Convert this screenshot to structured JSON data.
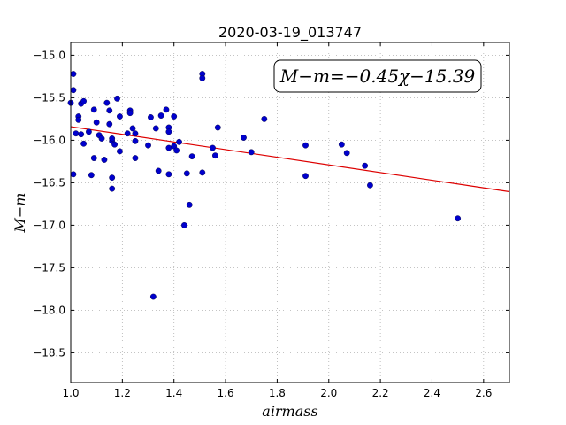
{
  "chart_data": {
    "type": "scatter",
    "title": "2020-03-19_013747",
    "xlabel": "airmass",
    "ylabel": "M−m",
    "xlim": [
      1.0,
      2.7
    ],
    "ylim": [
      -18.85,
      -14.85
    ],
    "y_inverted": true,
    "grid": true,
    "x_ticks": [
      1.0,
      1.2,
      1.4,
      1.6,
      1.8,
      2.0,
      2.2,
      2.4,
      2.6
    ],
    "x_tick_labels": [
      "1.0",
      "1.2",
      "1.4",
      "1.6",
      "1.8",
      "2.0",
      "2.2",
      "2.4",
      "2.6"
    ],
    "y_ticks": [
      -15.0,
      -15.5,
      -16.0,
      -16.5,
      -17.0,
      -17.5,
      -18.0,
      -18.5
    ],
    "y_tick_labels": [
      "−15.0",
      "−15.5",
      "−16.0",
      "−16.5",
      "−17.0",
      "−17.5",
      "−18.0",
      "−18.5"
    ],
    "annotation": "M−m=−0.45χ−15.39",
    "annotation_position": "top-right",
    "colors": {
      "points": "#0000cc",
      "fit_line": "#dd0000",
      "grid": "#b0b0b0"
    },
    "fit": {
      "slope": -0.45,
      "intercept": -15.39
    },
    "series": [
      {
        "points": [
          [
            1.0,
            -15.56
          ],
          [
            1.01,
            -15.22
          ],
          [
            1.01,
            -15.41
          ],
          [
            1.01,
            -16.4
          ],
          [
            1.02,
            -15.92
          ],
          [
            1.03,
            -15.72
          ],
          [
            1.03,
            -15.76
          ],
          [
            1.04,
            -15.57
          ],
          [
            1.04,
            -15.93
          ],
          [
            1.05,
            -15.54
          ],
          [
            1.05,
            -16.04
          ],
          [
            1.07,
            -15.9
          ],
          [
            1.08,
            -16.41
          ],
          [
            1.09,
            -15.64
          ],
          [
            1.09,
            -16.21
          ],
          [
            1.1,
            -15.79
          ],
          [
            1.11,
            -15.94
          ],
          [
            1.12,
            -15.98
          ],
          [
            1.13,
            -16.23
          ],
          [
            1.14,
            -15.56
          ],
          [
            1.15,
            -15.65
          ],
          [
            1.15,
            -15.81
          ],
          [
            1.16,
            -16.01
          ],
          [
            1.16,
            -15.98
          ],
          [
            1.16,
            -16.44
          ],
          [
            1.16,
            -16.57
          ],
          [
            1.17,
            -16.05
          ],
          [
            1.18,
            -15.51
          ],
          [
            1.19,
            -15.72
          ],
          [
            1.19,
            -16.13
          ],
          [
            1.22,
            -15.92
          ],
          [
            1.23,
            -15.65
          ],
          [
            1.23,
            -15.68
          ],
          [
            1.24,
            -15.86
          ],
          [
            1.25,
            -15.92
          ],
          [
            1.25,
            -16.21
          ],
          [
            1.25,
            -16.01
          ],
          [
            1.3,
            -16.06
          ],
          [
            1.31,
            -15.73
          ],
          [
            1.32,
            -17.84
          ],
          [
            1.33,
            -15.86
          ],
          [
            1.34,
            -16.36
          ],
          [
            1.35,
            -15.71
          ],
          [
            1.37,
            -15.64
          ],
          [
            1.38,
            -15.85
          ],
          [
            1.38,
            -15.9
          ],
          [
            1.38,
            -16.09
          ],
          [
            1.38,
            -16.4
          ],
          [
            1.4,
            -15.72
          ],
          [
            1.4,
            -16.07
          ],
          [
            1.41,
            -16.12
          ],
          [
            1.42,
            -16.02
          ],
          [
            1.44,
            -17.0
          ],
          [
            1.45,
            -16.39
          ],
          [
            1.46,
            -16.76
          ],
          [
            1.47,
            -16.19
          ],
          [
            1.51,
            -15.22
          ],
          [
            1.51,
            -15.27
          ],
          [
            1.51,
            -16.38
          ],
          [
            1.55,
            -16.09
          ],
          [
            1.56,
            -16.18
          ],
          [
            1.57,
            -15.85
          ],
          [
            1.67,
            -15.97
          ],
          [
            1.7,
            -16.14
          ],
          [
            1.75,
            -15.75
          ],
          [
            1.91,
            -16.06
          ],
          [
            1.91,
            -16.42
          ],
          [
            2.05,
            -16.05
          ],
          [
            2.07,
            -16.15
          ],
          [
            2.14,
            -16.3
          ],
          [
            2.16,
            -16.53
          ],
          [
            2.5,
            -16.92
          ]
        ]
      }
    ]
  }
}
